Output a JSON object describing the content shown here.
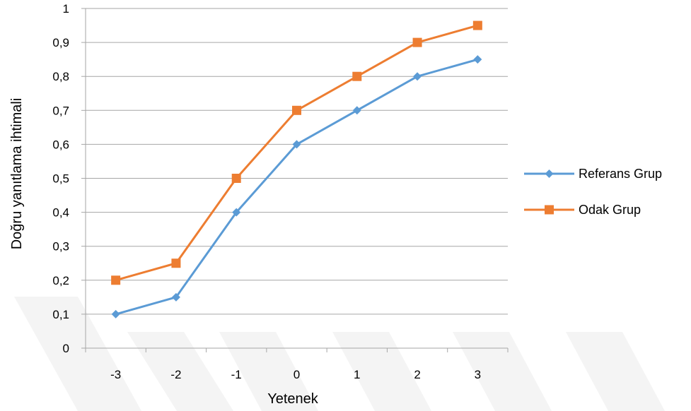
{
  "chart_data": {
    "type": "line",
    "title": "",
    "xlabel": "Yetenek",
    "ylabel": "Doğru yanıtlama ihtimali",
    "categories": [
      "-3",
      "-2",
      "-1",
      "0",
      "1",
      "2",
      "3"
    ],
    "ylim": [
      0,
      1
    ],
    "yticks": [
      "0",
      "0,1",
      "0,2",
      "0,3",
      "0,4",
      "0,5",
      "0,6",
      "0,7",
      "0,8",
      "0,9",
      "1"
    ],
    "grid": true,
    "legend_position": "right",
    "series": [
      {
        "name": "Referans Grup",
        "color": "#5B9BD5",
        "marker": "diamond",
        "values": [
          0.1,
          0.15,
          0.4,
          0.6,
          0.7,
          0.8,
          0.85
        ]
      },
      {
        "name": "Odak Grup",
        "color": "#ED7D31",
        "marker": "square",
        "values": [
          0.2,
          0.25,
          0.5,
          0.7,
          0.8,
          0.9,
          0.95
        ]
      }
    ]
  }
}
